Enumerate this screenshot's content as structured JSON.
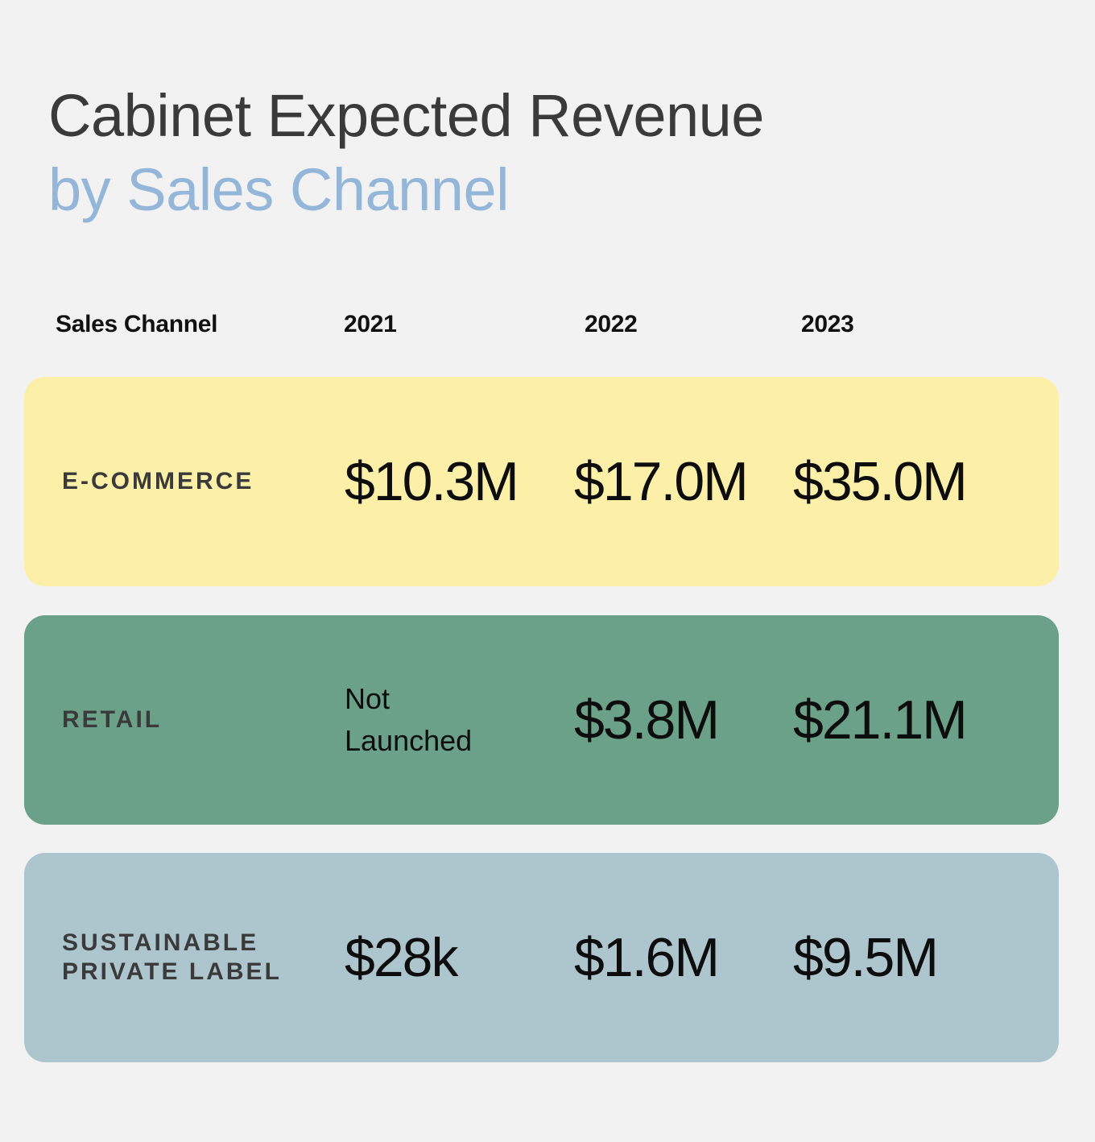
{
  "title": {
    "line1": "Cabinet Expected Revenue",
    "line2": "by Sales Channel"
  },
  "colors": {
    "background": "#f2f2f2",
    "title_primary": "#3a3a3a",
    "title_accent": "#94b6d9",
    "ecommerce_row": "#fcf0a8",
    "retail_row": "#6aa188",
    "private_label_row": "#adc5cd"
  },
  "chart_data": {
    "type": "table",
    "columns": [
      "Sales Channel",
      "2021",
      "2022",
      "2023"
    ],
    "rows": [
      {
        "channel": "E-COMMERCE",
        "color": "#fcf0a8",
        "values": [
          "$10.3M",
          "$17.0M",
          "$35.0M"
        ]
      },
      {
        "channel": "RETAIL",
        "color": "#6aa188",
        "values": [
          "Not Launched",
          "$3.8M",
          "$21.1M"
        ]
      },
      {
        "channel": "SUSTAINABLE\nPRIVATE LABEL",
        "color": "#adc5cd",
        "values": [
          "$28k",
          "$1.6M",
          "$9.5M"
        ]
      }
    ]
  }
}
